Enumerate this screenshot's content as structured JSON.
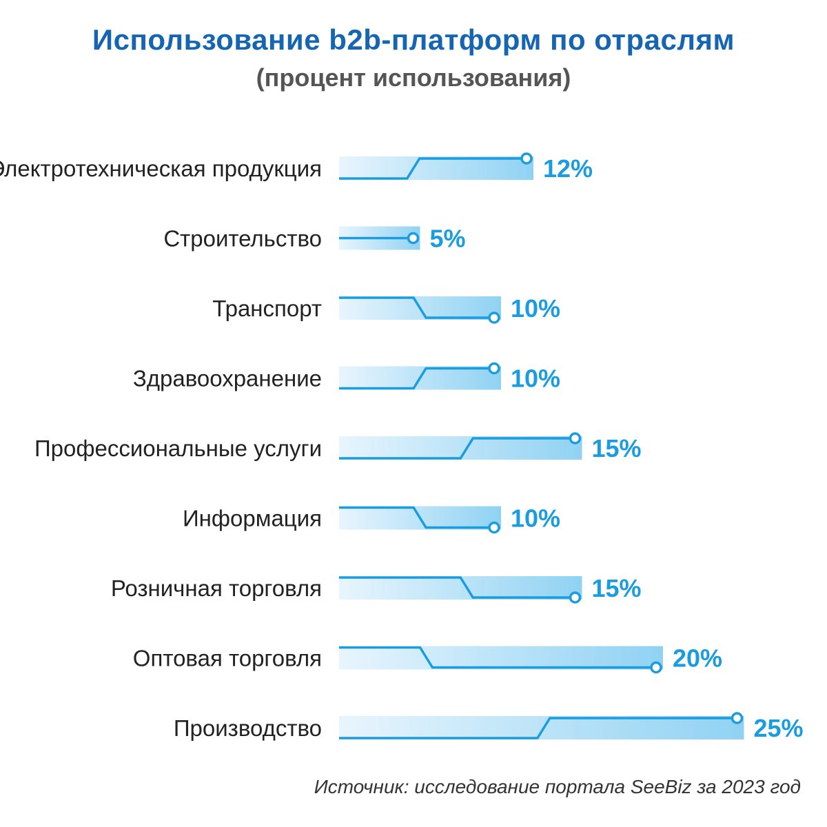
{
  "colors": {
    "title": "#1565b3",
    "subtitle": "#555555",
    "accent": "#1a9ce0",
    "bar_light": "#e8f5fd",
    "bar_dark": "#90d2f3",
    "label": "#222222",
    "source": "#333333"
  },
  "chart_data": {
    "type": "bar",
    "orientation": "horizontal",
    "title": "Использование b2b-платформ по отраслям",
    "subtitle": "(процент использования)",
    "categories": [
      "Электротехническая продукция",
      "Строительство",
      "Транспорт",
      "Здравоохранение",
      "Профессиональные услуги",
      "Информация",
      "Розничная торговля",
      "Оптовая торговля",
      "Производство"
    ],
    "values": [
      12,
      5,
      10,
      10,
      15,
      10,
      15,
      20,
      25
    ],
    "value_labels": [
      "12%",
      "5%",
      "10%",
      "10%",
      "15%",
      "10%",
      "15%",
      "20%",
      "25%"
    ],
    "line_shapes": [
      "up",
      "flat",
      "down",
      "up",
      "up",
      "down",
      "down",
      "down",
      "up"
    ],
    "unit": "%",
    "grid": false,
    "legend": "none"
  },
  "source": "Источник: исследование портала SeeBiz за 2023 год"
}
